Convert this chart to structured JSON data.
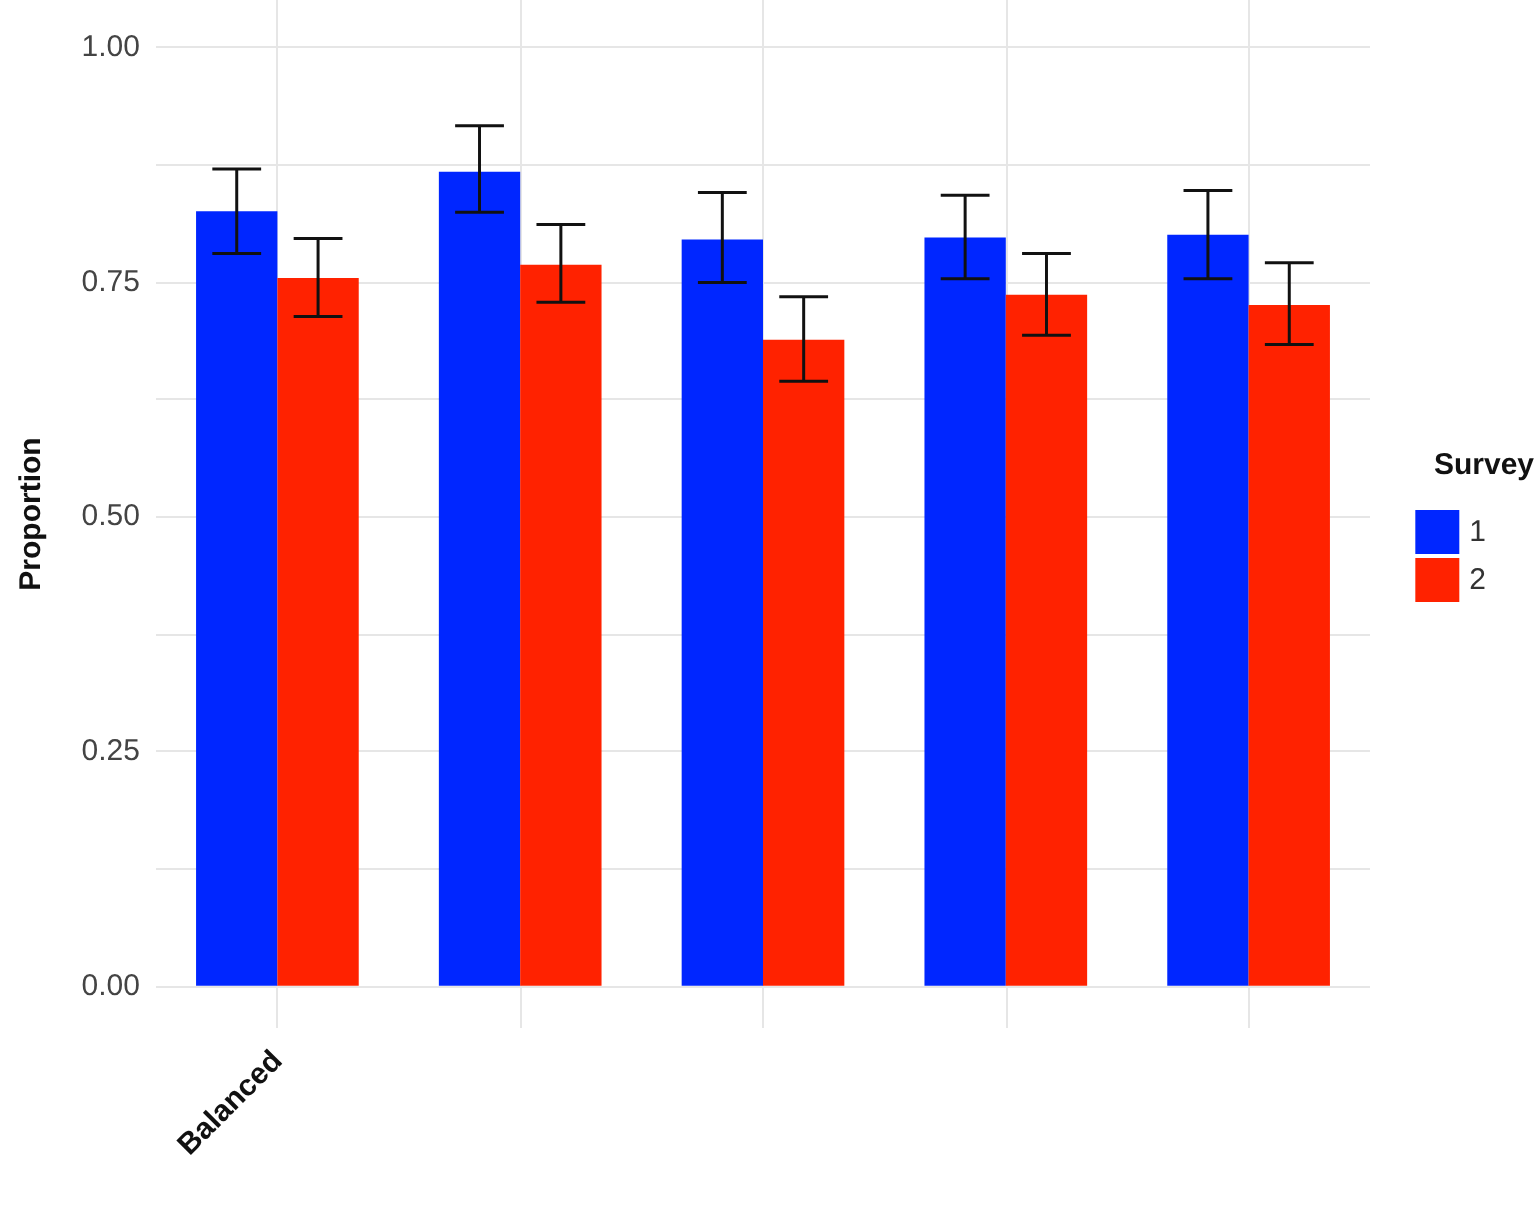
{
  "chart_data": {
    "type": "bar",
    "ylabel": "Proportion",
    "legend_title": "Survey",
    "categories": [
      "Balanced",
      null,
      null,
      null,
      null
    ],
    "series": [
      {
        "name": "1",
        "color": "#0026ff",
        "values": [
          0.825,
          0.867,
          0.795,
          0.797,
          0.8
        ],
        "errors": [
          [
            0.78,
            0.87
          ],
          [
            0.824,
            0.916
          ],
          [
            0.749,
            0.845
          ],
          [
            0.753,
            0.842
          ],
          [
            0.753,
            0.847
          ]
        ]
      },
      {
        "name": "2",
        "color": "#ff2200",
        "values": [
          0.754,
          0.768,
          0.688,
          0.736,
          0.725
        ],
        "errors": [
          [
            0.713,
            0.796
          ],
          [
            0.728,
            0.811
          ],
          [
            0.644,
            0.734
          ],
          [
            0.693,
            0.78
          ],
          [
            0.683,
            0.77
          ]
        ]
      }
    ],
    "ylim": [
      -0.045,
      1.05
    ],
    "yticks": [
      {
        "value": 0,
        "label": "0.00"
      },
      {
        "value": 0.125,
        "label": null
      },
      {
        "value": 0.25,
        "label": "0.25"
      },
      {
        "value": 0.375,
        "label": null
      },
      {
        "value": 0.5,
        "label": "0.50"
      },
      {
        "value": 0.625,
        "label": null
      },
      {
        "value": 0.75,
        "label": "0.75"
      },
      {
        "value": 0.875,
        "label": null
      },
      {
        "value": 1,
        "label": "1.00"
      }
    ],
    "grid": true,
    "legend": "right"
  }
}
